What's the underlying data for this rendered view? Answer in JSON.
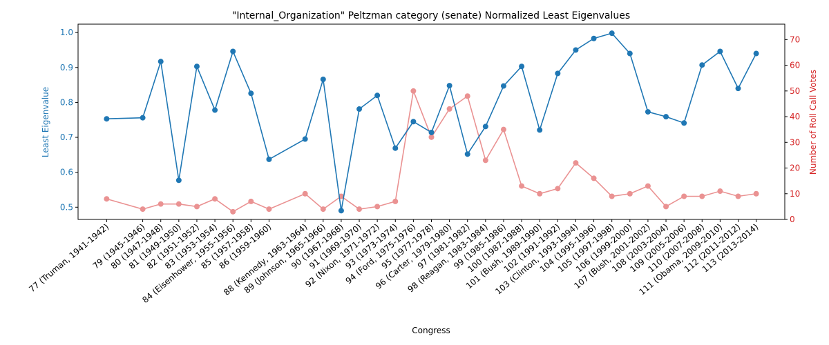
{
  "chart_data": {
    "type": "line",
    "title": "\"Internal_Organization\" Peltzman category (senate) Normalized Least Eigenvalues",
    "xlabel": "Congress",
    "ylabel_left": "Least Eigenvalue",
    "ylabel_right": "Number of Roll Call Votes",
    "categories": [
      "77 (Truman, 1941-1942)",
      "79 (1945-1946)",
      "80 (1947-1948)",
      "81 (1949-1950)",
      "82 (1951-1952)",
      "83 (1953-1954)",
      "84 (Eisenhower, 1955-1956)",
      "85 (1957-1958)",
      "86 (1959-1960)",
      "88 (Kennedy, 1963-1964)",
      "89 (Johnson, 1965-1966)",
      "90 (1967-1968)",
      "91 (1969-1970)",
      "92 (Nixon, 1971-1972)",
      "93 (1973-1974)",
      "94 (Ford, 1975-1976)",
      "95 (1977-1978)",
      "96 (Carter, 1979-1980)",
      "97 (1981-1982)",
      "98 (Reagan, 1983-1984)",
      "99 (1985-1986)",
      "100 (1987-1988)",
      "101 (Bush, 1989-1990)",
      "102 (1991-1992)",
      "103 (Clinton, 1993-1994)",
      "104 (1995-1996)",
      "105 (1997-1998)",
      "106 (1999-2000)",
      "107 (Bush, 2001-2002)",
      "108 (2003-2004)",
      "109 (2005-2006)",
      "110 (2007-2008)",
      "111 (Obama, 2009-2010)",
      "112 (2011-2012)",
      "113 (2013-2014)"
    ],
    "x_positions": [
      77,
      79,
      80,
      81,
      82,
      83,
      84,
      85,
      86,
      88,
      89,
      90,
      91,
      92,
      93,
      94,
      95,
      96,
      97,
      98,
      99,
      100,
      101,
      102,
      103,
      104,
      105,
      106,
      107,
      108,
      109,
      110,
      111,
      112,
      113
    ],
    "series": [
      {
        "axis": "left",
        "color": "#1f77b4",
        "values": [
          0.753,
          0.756,
          0.917,
          0.577,
          0.903,
          0.778,
          0.946,
          0.826,
          0.637,
          0.695,
          0.866,
          0.49,
          0.781,
          0.82,
          0.669,
          0.745,
          0.714,
          0.848,
          0.652,
          0.731,
          0.847,
          0.903,
          0.721,
          0.883,
          0.95,
          0.983,
          0.998,
          0.94,
          0.773,
          0.759,
          0.741,
          0.907,
          0.946,
          0.84,
          0.94
        ]
      },
      {
        "axis": "right",
        "color": "#d62728",
        "values": [
          8,
          4,
          6,
          6,
          5,
          8,
          3,
          7,
          4,
          10,
          4,
          9,
          4,
          5,
          7,
          50,
          32,
          43,
          48,
          23,
          35,
          13,
          10,
          12,
          22,
          16,
          9,
          10,
          13,
          5,
          9,
          9,
          11,
          9,
          10
        ]
      }
    ],
    "ylim_left": [
      0.465,
      1.024
    ],
    "ylim_right": [
      0,
      76
    ],
    "yticks_left": [
      "0.5",
      "0.6",
      "0.7",
      "0.8",
      "0.9",
      "1.0"
    ],
    "yticks_right": [
      "0",
      "10",
      "20",
      "30",
      "40",
      "50",
      "60",
      "70"
    ],
    "grid": false,
    "legend": "none"
  }
}
